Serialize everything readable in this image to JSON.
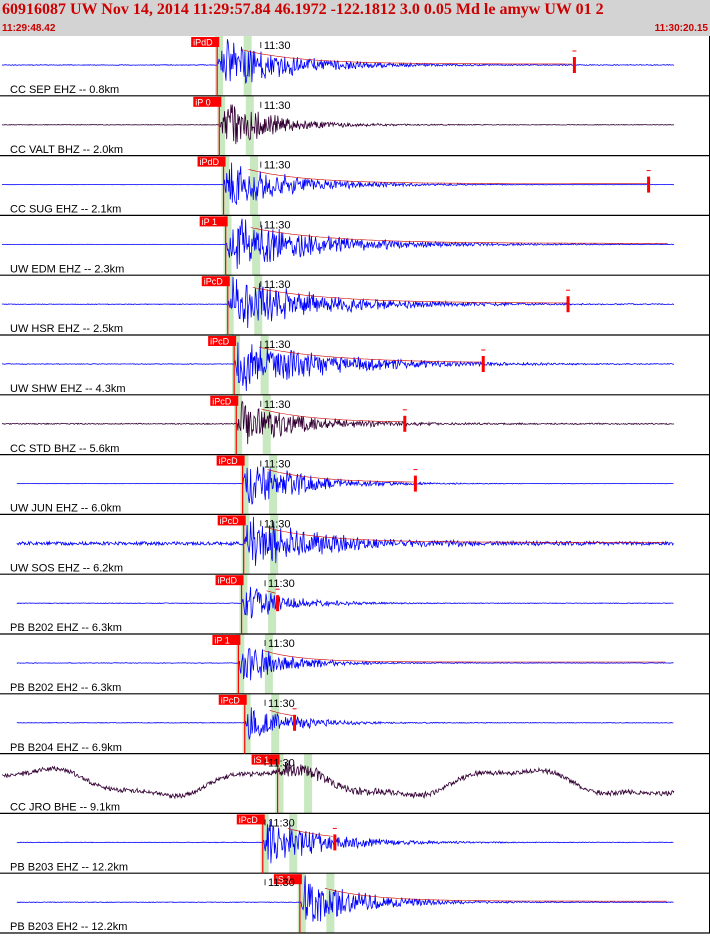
{
  "header": {
    "title": "60916087 UW Nov 14, 2014 11:29:57.84   46.1972 -122.1812  3.0 0.05 Md le amyw UW 01   2",
    "start_time": "11:29:48.42",
    "end_time": "11:30:20.15"
  },
  "colors": {
    "header_bg": "#d3d3d3",
    "header_text": "#cc0000",
    "trace_blue": "#0000ff",
    "trace_dark": "#330033",
    "pick": "#ff0000",
    "coda": "#cc0000",
    "marker_band": "#c8e8c0"
  },
  "chart_data": {
    "type": "seismogram",
    "title": "60916087 UW Nov 14, 2014 11:29:57.84   46.1972 -122.1812  3.0 0.05 Md le amyw UW 01   2",
    "x_unit": "time (UTC)",
    "xlim": [
      "11:29:48.42",
      "11:30:20.15"
    ],
    "time_marker_label": "11:30",
    "time_bands_seconds": [
      0.5,
      1.3
    ],
    "series": [
      {
        "name": "CC SEP EHZ -- 0.8km",
        "pick_label": "iPdD",
        "pick_t": 10.15,
        "start_t": 0.0,
        "end_t": 31.7,
        "coda_t": 27.0,
        "style": "blue",
        "amp": 1.0,
        "noise": 0.012,
        "decay": 3.0,
        "wander": 0
      },
      {
        "name": "CC VALT BHZ -- 2.0km",
        "pick_label": "iP  0",
        "pick_t": 10.25,
        "start_t": 0.0,
        "end_t": 31.7,
        "coda_t": null,
        "style": "dark",
        "amp": 1.0,
        "noise": 0.01,
        "decay": 2.2,
        "wander": 0
      },
      {
        "name": "CC SUG EHZ -- 2.1km",
        "pick_label": "iPdD",
        "pick_t": 10.45,
        "start_t": 0.0,
        "end_t": 31.7,
        "coda_t": 30.5,
        "style": "blue",
        "amp": 0.9,
        "noise": 0.005,
        "decay": 3.0,
        "wander": 0
      },
      {
        "name": "UW EDM EHZ -- 2.3km",
        "pick_label": "iP  1",
        "pick_t": 10.55,
        "start_t": 0.0,
        "end_t": 31.7,
        "coda_t": null,
        "style": "blue",
        "amp": 1.0,
        "noise": 0.005,
        "decay": 4.0,
        "wander": 0
      },
      {
        "name": "UW HSR EHZ -- 2.5km",
        "pick_label": "iPcD",
        "pick_t": 10.65,
        "start_t": 0.0,
        "end_t": 31.7,
        "coda_t": 26.7,
        "style": "blue",
        "amp": 1.0,
        "noise": 0.01,
        "decay": 4.0,
        "wander": 0
      },
      {
        "name": "UW SHW EHZ -- 4.3km",
        "pick_label": "iPcD",
        "pick_t": 10.95,
        "start_t": 0.0,
        "end_t": 31.7,
        "coda_t": 22.7,
        "style": "blue",
        "amp": 1.0,
        "noise": 0.012,
        "decay": 4.0,
        "wander": 0
      },
      {
        "name": "CC STD BHZ -- 5.6km",
        "pick_label": "iPcD",
        "pick_t": 11.05,
        "start_t": 0.0,
        "end_t": 31.7,
        "coda_t": 19.0,
        "style": "dark",
        "amp": 0.8,
        "noise": 0.02,
        "decay": 2.8,
        "wander": 0
      },
      {
        "name": "UW JUN EHZ -- 6.0km",
        "pick_label": "iPcD",
        "pick_t": 11.35,
        "start_t": 0.7,
        "end_t": 31.7,
        "coda_t": 19.5,
        "style": "blue",
        "amp": 1.0,
        "noise": 0.005,
        "decay": 2.5,
        "wander": 0
      },
      {
        "name": "UW SOS EHZ -- 6.2km",
        "pick_label": "iPcD",
        "pick_t": 11.4,
        "start_t": 0.7,
        "end_t": 31.7,
        "coda_t": null,
        "style": "blue",
        "amp": 1.0,
        "noise": 0.06,
        "decay": 3.0,
        "wander": 0
      },
      {
        "name": "PB B202 EHZ -- 6.3km",
        "pick_label": "iPdD",
        "pick_t": 11.3,
        "start_t": 0.7,
        "end_t": 31.7,
        "coda_t": 13.0,
        "style": "blue",
        "amp": 0.7,
        "noise": 0.01,
        "decay": 2.0,
        "wander": 0
      },
      {
        "name": "PB B202 EH2 -- 6.3km",
        "pick_label": "iP  1",
        "pick_t": 11.15,
        "start_t": 0.7,
        "end_t": 31.7,
        "coda_t": null,
        "style": "blue",
        "amp": 0.8,
        "noise": 0.01,
        "decay": 2.0,
        "wander": 0
      },
      {
        "name": "PB B204 EHZ -- 6.9km",
        "pick_label": "iPcD",
        "pick_t": 11.45,
        "start_t": 0.7,
        "end_t": 31.7,
        "coda_t": 13.8,
        "style": "blue",
        "amp": 0.7,
        "noise": 0.01,
        "decay": 2.0,
        "wander": 0
      },
      {
        "name": "CC JRO BHE -- 9.1km",
        "pick_label": "iS  1",
        "pick_t": 13.0,
        "start_t": 0.0,
        "end_t": 31.7,
        "coda_t": null,
        "style": "dark",
        "amp": 0.3,
        "noise": 0.08,
        "decay": 2.0,
        "wander": 0.45
      },
      {
        "name": "PB B203 EHZ -- 12.2km",
        "pick_label": "iPcD",
        "pick_t": 12.3,
        "start_t": 0.7,
        "end_t": 31.7,
        "coda_t": 15.7,
        "style": "blue",
        "amp": 1.0,
        "noise": 0.01,
        "decay": 2.5,
        "wander": 0
      },
      {
        "name": "PB B203 EH2 -- 12.2km",
        "pick_label": "iS  1",
        "pick_t": 14.05,
        "start_t": 0.7,
        "end_t": 31.7,
        "coda_t": null,
        "style": "blue",
        "amp": 1.0,
        "noise": 0.01,
        "decay": 2.5,
        "wander": 0
      }
    ]
  }
}
